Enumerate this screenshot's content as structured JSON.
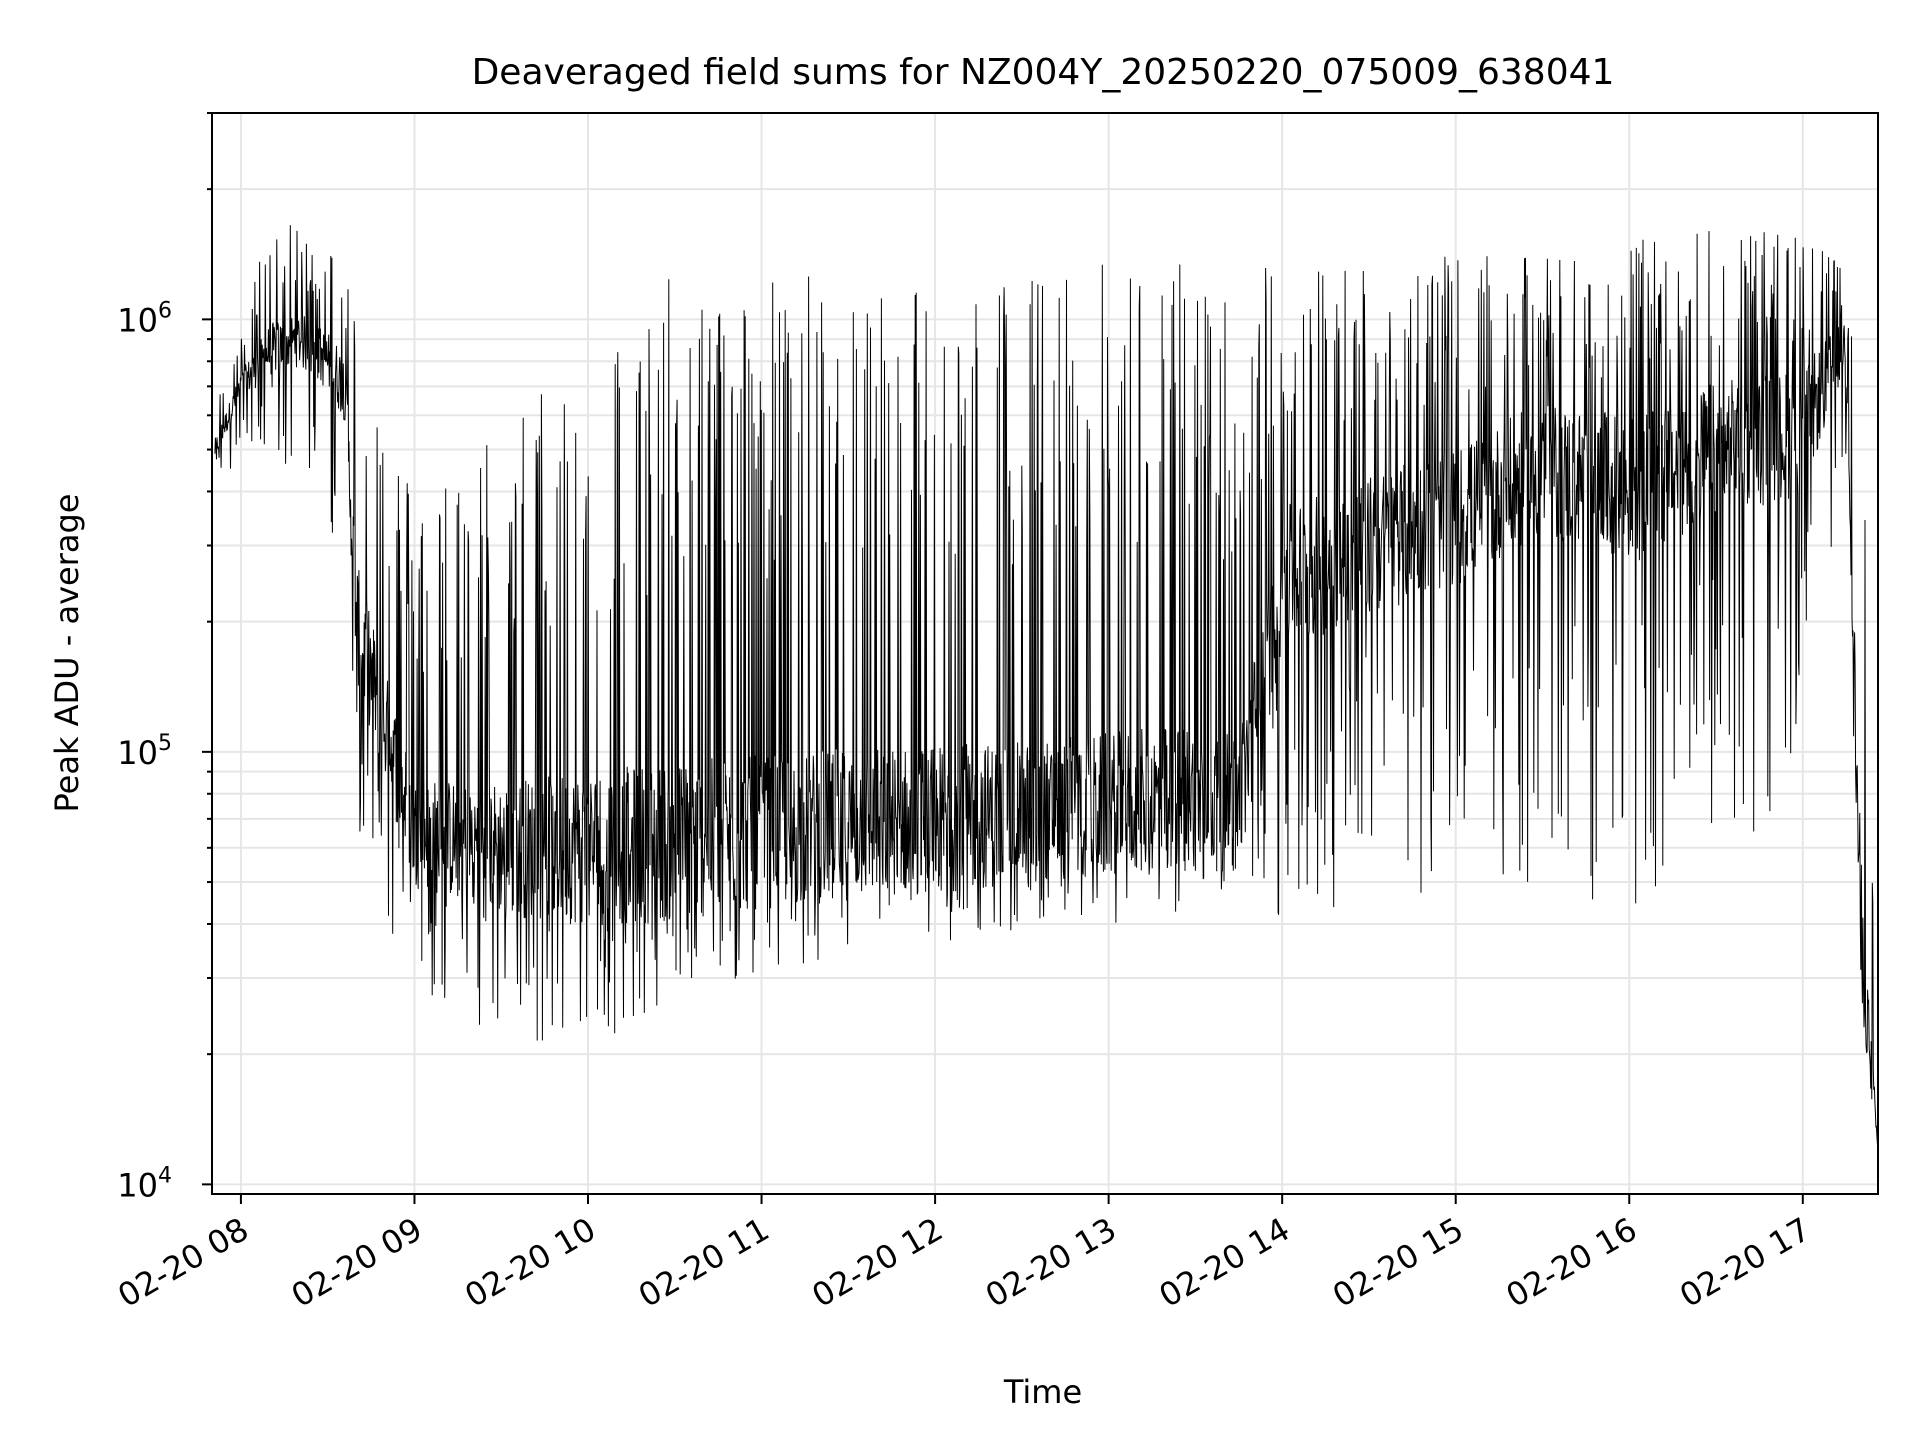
{
  "chart_data": {
    "type": "line",
    "title": "Deaveraged field sums for NZ004Y_20250220_075009_638041",
    "xlabel": "Time",
    "ylabel": "Peak ADU - average",
    "yscale": "log",
    "grid": true,
    "legend": "none",
    "line_color": "#000000",
    "xlim": [
      "2025-02-20 07:50",
      "2025-02-20 17:26"
    ],
    "ylim": [
      9500,
      3000000
    ],
    "x_ticks": [
      "02-20 08",
      "02-20 09",
      "02-20 10",
      "02-20 11",
      "02-20 12",
      "02-20 13",
      "02-20 14",
      "02-20 15",
      "02-20 16",
      "02-20 17"
    ],
    "y_ticks": [
      {
        "value": 10000,
        "base": "10",
        "exp": "4"
      },
      {
        "value": 100000,
        "base": "10",
        "exp": "5"
      },
      {
        "value": 1000000,
        "base": "10",
        "exp": "6"
      }
    ],
    "series": [
      {
        "x": [
          "2025-02-20 07:51",
          "2025-02-20 08:00",
          "2025-02-20 08:10",
          "2025-02-20 08:20",
          "2025-02-20 08:30",
          "2025-02-20 08:36",
          "2025-02-20 08:40",
          "2025-02-20 09:00",
          "2025-02-20 09:30",
          "2025-02-20 10:00",
          "2025-02-20 10:30",
          "2025-02-20 11:00",
          "2025-02-20 11:30",
          "2025-02-20 12:00",
          "2025-02-20 12:30",
          "2025-02-20 13:00",
          "2025-02-20 13:30",
          "2025-02-20 13:45",
          "2025-02-20 14:00",
          "2025-02-20 14:30",
          "2025-02-20 15:00",
          "2025-02-20 15:30",
          "2025-02-20 16:00",
          "2025-02-20 16:30",
          "2025-02-20 17:00",
          "2025-02-20 17:15",
          "2025-02-20 17:20",
          "2025-02-20 17:26"
        ],
        "median": [
          500000,
          700000,
          850000,
          900000,
          800000,
          700000,
          200000,
          65000,
          60000,
          60000,
          62000,
          65000,
          68000,
          70000,
          72000,
          75000,
          80000,
          75000,
          250000,
          300000,
          350000,
          450000,
          400000,
          500000,
          550000,
          900000,
          40000,
          12000
        ],
        "low": [
          420000,
          450000,
          500000,
          420000,
          350000,
          250000,
          60000,
          28000,
          22000,
          20000,
          25000,
          30000,
          32000,
          35000,
          38000,
          40000,
          42000,
          45000,
          40000,
          45000,
          48000,
          50000,
          40000,
          60000,
          70000,
          400000,
          25000,
          12000
        ],
        "high": [
          700000,
          900000,
          1800000,
          1600000,
          1500000,
          1400000,
          1100000,
          400000,
          600000,
          900000,
          1300000,
          1300000,
          1300000,
          1300000,
          1300000,
          1400000,
          1400000,
          1300000,
          1400000,
          1400000,
          1400000,
          1400000,
          1500000,
          1700000,
          1600000,
          1300000,
          1300000,
          12000
        ]
      }
    ]
  }
}
